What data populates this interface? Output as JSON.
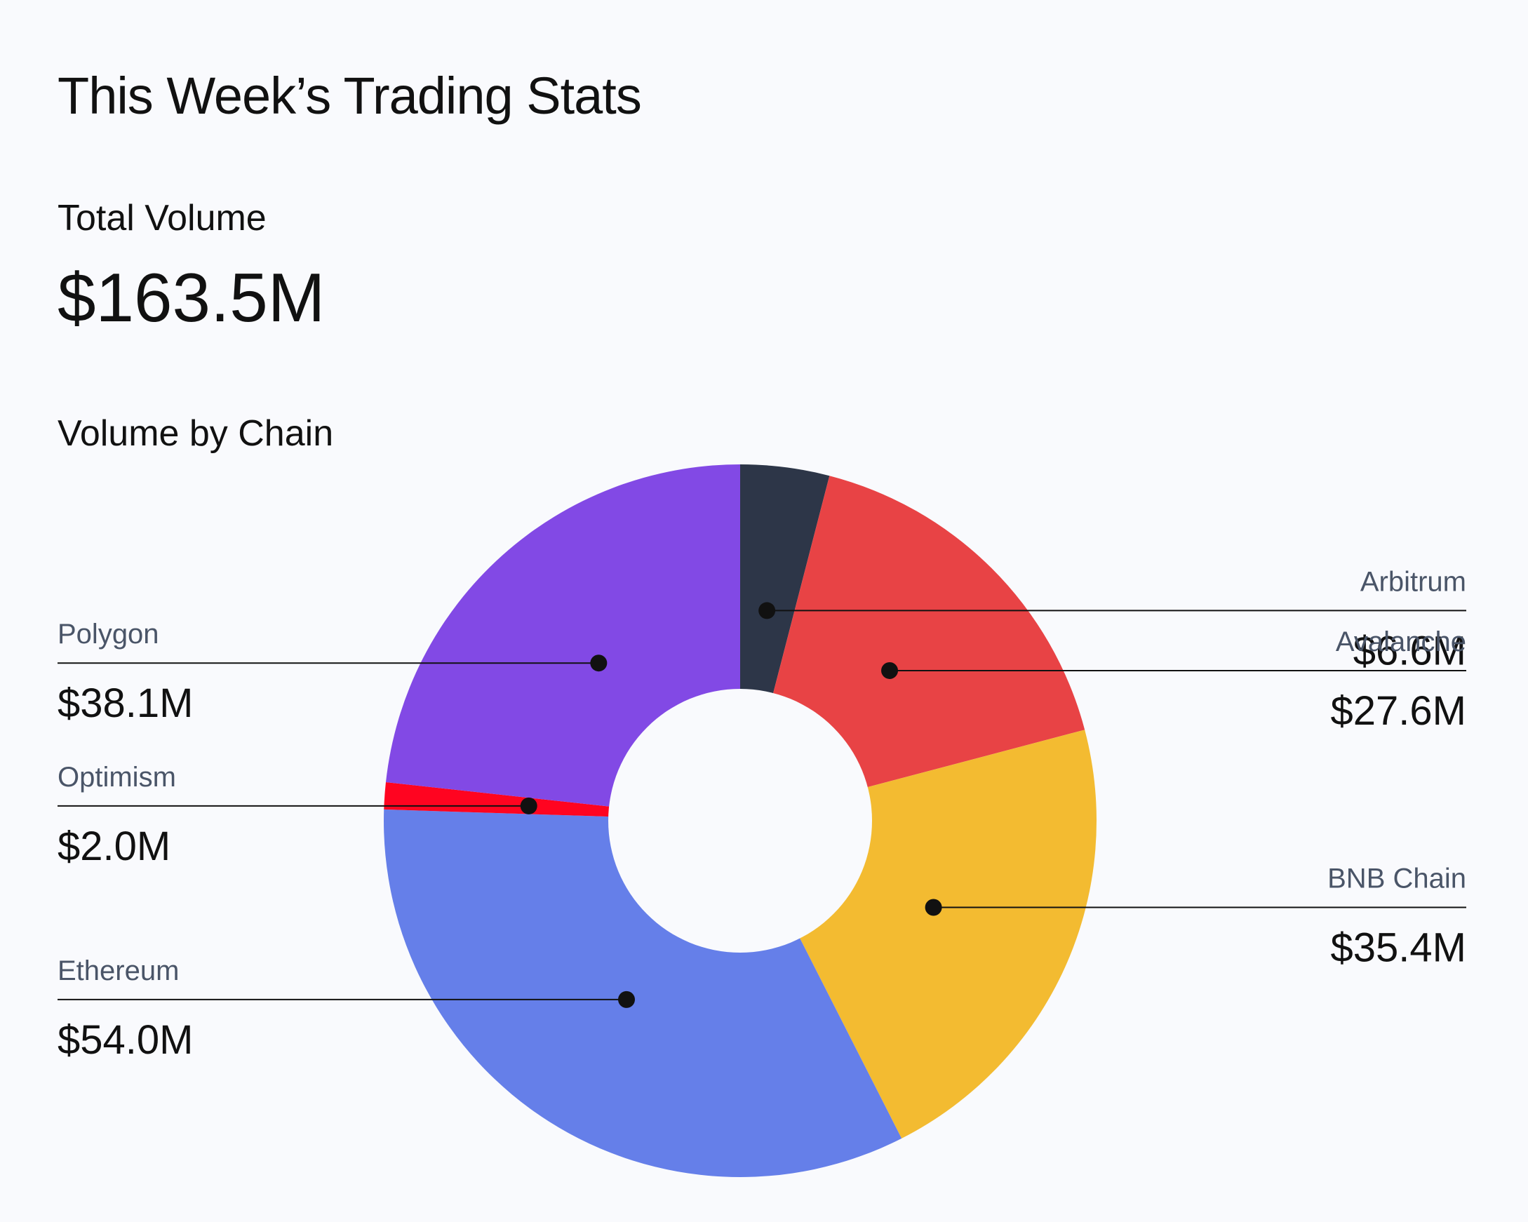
{
  "page": {
    "title": "This Week’s Trading Stats",
    "total_label": "Total Volume",
    "total_value": "$163.5M",
    "chart_heading": "Volume by Chain"
  },
  "chart_data": {
    "type": "pie",
    "style": "donut",
    "title": "Volume by Chain",
    "unit": "$M",
    "start_angle_deg": 0,
    "direction": "clockwise",
    "slices": [
      {
        "name": "Arbitrum",
        "value": 6.6,
        "label": "$6.6M",
        "color": "#2d3648",
        "side": "right"
      },
      {
        "name": "Avalanche",
        "value": 27.6,
        "label": "$27.6M",
        "color": "#e84345",
        "side": "right"
      },
      {
        "name": "BNB Chain",
        "value": 35.4,
        "label": "$35.4M",
        "color": "#f3bb31",
        "side": "right"
      },
      {
        "name": "Ethereum",
        "value": 54.0,
        "label": "$54.0M",
        "color": "#657fe9",
        "side": "left"
      },
      {
        "name": "Optimism",
        "value": 2.0,
        "label": "$2.0M",
        "color": "#ff0420",
        "side": "left"
      },
      {
        "name": "Polygon",
        "value": 38.1,
        "label": "$38.1M",
        "color": "#8249e5",
        "side": "left"
      }
    ]
  }
}
